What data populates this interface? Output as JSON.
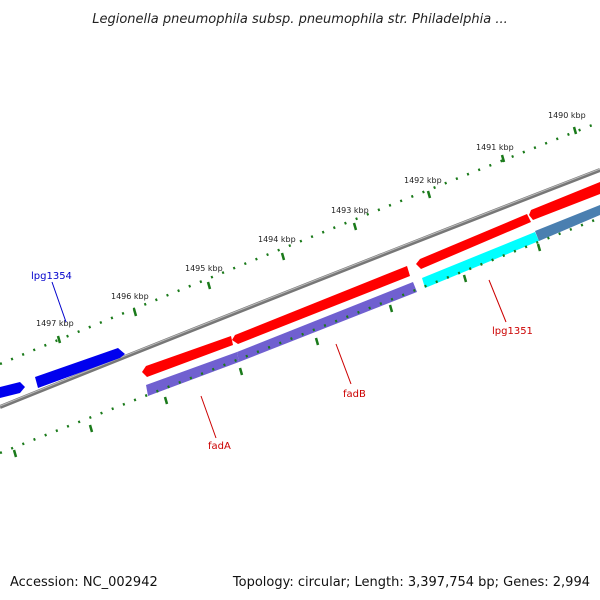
{
  "title": "Legionella pneumophila subsp. pneumophila str. Philadelphia ...",
  "footer": {
    "accession": "Accession: NC_002942",
    "summary": "Topology: circular; Length: 3,397,754 bp; Genes: 2,994"
  },
  "ticks": {
    "labels": [
      "1490 kbp",
      "1491 kbp",
      "1492 kbp",
      "1493 kbp",
      "1494 kbp",
      "1495 kbp",
      "1496 kbp",
      "1497 kbp"
    ]
  },
  "genes": {
    "lpg1354": {
      "label": "lpg1354",
      "color": "#0000cc"
    },
    "fadA": {
      "label": "fadA",
      "color": "#cc0000"
    },
    "fadB": {
      "label": "fadB",
      "color": "#cc0000"
    },
    "lpg1351": {
      "label": "lpg1351",
      "color": "#cc0000"
    }
  },
  "colors": {
    "backbone": "#888888",
    "tick": "#1a7a1a",
    "cds_forward": "#ff0000",
    "cds_blue": "#0000ee",
    "cds_purple": "#7060d0",
    "cds_cyan": "#00ffff",
    "cds_steel": "#4a7fb0"
  }
}
